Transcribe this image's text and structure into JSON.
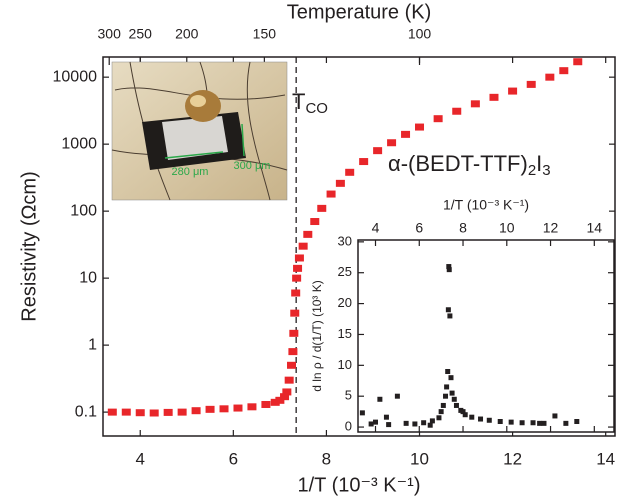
{
  "chart_data": [
    {
      "type": "scatter",
      "xlabel": "1/T (10⁻³ K⁻¹)",
      "ylabel": "Resistivity (Ωcm)",
      "x2label": "Temperature (K)",
      "x2scale": "reciprocal",
      "x2ticks": [
        300,
        250,
        200,
        150,
        100
      ],
      "xlim": [
        3.2,
        14.2
      ],
      "xticks": [
        4,
        6,
        8,
        10,
        12,
        14
      ],
      "yscale": "log",
      "ylim": [
        0.044,
        20000
      ],
      "yticks": [
        0.1,
        1,
        10,
        100,
        1000,
        10000
      ],
      "vlines": [
        7.35
      ],
      "annotations": [
        [
          {
            "text": "T",
            "sub": "CO"
          }
        ],
        [
          {
            "text": "α-(BEDT-TTF)",
            "sub": "2"
          },
          {
            "text": "I",
            "sub": "3"
          }
        ]
      ],
      "series": [
        {
          "color": "#e8262a",
          "x": [
            3.4,
            3.7,
            4.0,
            4.3,
            4.6,
            4.9,
            5.2,
            5.5,
            5.8,
            6.1,
            6.4,
            6.7,
            6.9,
            7.0,
            7.1,
            7.15,
            7.2,
            7.25,
            7.28,
            7.3,
            7.32,
            7.34,
            7.36,
            7.38,
            7.42,
            7.5,
            7.6,
            7.75,
            7.9,
            8.1,
            8.3,
            8.5,
            8.8,
            9.1,
            9.4,
            9.7,
            10.0,
            10.4,
            10.8,
            11.2,
            11.6,
            12.0,
            12.4,
            12.8,
            13.1,
            13.4
          ],
          "values": [
            0.1,
            0.1,
            0.098,
            0.097,
            0.099,
            0.1,
            0.105,
            0.11,
            0.112,
            0.115,
            0.12,
            0.13,
            0.14,
            0.15,
            0.17,
            0.2,
            0.3,
            0.5,
            0.8,
            1.5,
            3,
            6,
            10,
            14,
            20,
            30,
            45,
            70,
            110,
            180,
            260,
            380,
            550,
            800,
            1050,
            1400,
            1800,
            2400,
            3100,
            4000,
            5000,
            6200,
            7800,
            10000,
            12500,
            17000
          ]
        }
      ]
    },
    {
      "type": "scatter",
      "xlabel": "1/T (10⁻³ K⁻¹)",
      "ylabel": "d ln ρ / d(1/T) (10³ K)",
      "xlim": [
        3.2,
        14.9
      ],
      "xticks": [
        4,
        6,
        8,
        10,
        12,
        14
      ],
      "ylim": [
        -0.8,
        30.3
      ],
      "yticks": [
        0,
        5,
        10,
        15,
        20,
        25,
        30
      ],
      "series": [
        {
          "color": "#231f20",
          "x": [
            3.4,
            3.8,
            4.2,
            4.6,
            5.0,
            5.4,
            5.8,
            6.2,
            6.6,
            6.9,
            7.0,
            7.1,
            7.2,
            7.25,
            7.3,
            7.33,
            7.35,
            7.37,
            7.4,
            7.45,
            7.5,
            7.6,
            7.7,
            7.9,
            8.1,
            8.4,
            8.8,
            9.2,
            9.7,
            10.2,
            10.7,
            11.2,
            11.7,
            12.2,
            12.7,
            13.2,
            4.0,
            4.5,
            6.5,
            8.0,
            11.5
          ],
          "values": [
            2.3,
            0.5,
            4.5,
            0.4,
            5.0,
            0.6,
            0.5,
            0.7,
            1.0,
            1.5,
            2.5,
            3.5,
            5,
            6.5,
            9,
            19,
            26,
            25.5,
            18,
            8,
            5.5,
            4.5,
            3.5,
            2.7,
            2.0,
            1.6,
            1.3,
            1.1,
            0.9,
            0.8,
            0.7,
            0.7,
            0.6,
            1.8,
            0.6,
            0.9,
            0.8,
            1.6,
            0.3,
            2.5,
            0.6
          ]
        }
      ]
    }
  ],
  "photo": {
    "labels": [
      "280 μm",
      "300 μm"
    ]
  }
}
